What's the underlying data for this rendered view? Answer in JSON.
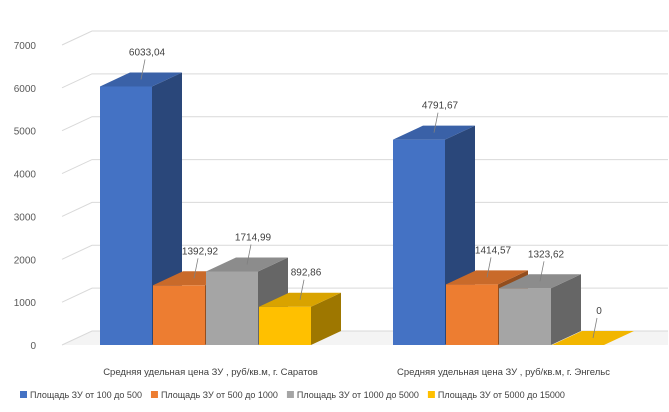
{
  "chart_data": {
    "type": "bar",
    "style": "3d-clustered-column",
    "categories": [
      "Средняя удельная цена ЗУ , руб/кв.м, г. Саратов",
      "Средняя удельная цена ЗУ , руб/кв.м, г. Энгельс"
    ],
    "series": [
      {
        "name": "Площадь ЗУ от 100 до 500",
        "color": "#4472C4",
        "values": [
          6033.04,
          4791.67
        ],
        "labels": [
          "6033,04",
          "4791,67"
        ]
      },
      {
        "name": "Площадь ЗУ от 500 до 1000",
        "color": "#ED7D31",
        "values": [
          1392.92,
          1414.57
        ],
        "labels": [
          "1392,92",
          "1414,57"
        ]
      },
      {
        "name": "Площадь ЗУ от 1000 до 5000",
        "color": "#A5A5A5",
        "values": [
          1714.99,
          1323.62
        ],
        "labels": [
          "1714,99",
          "1323,62"
        ]
      },
      {
        "name": "Площадь ЗУ от 5000 до 15000",
        "color": "#FFC000",
        "values": [
          892.86,
          0
        ],
        "labels": [
          "892,86",
          "0"
        ]
      }
    ],
    "y_ticks": [
      "0",
      "1000",
      "2000",
      "3000",
      "4000",
      "5000",
      "6000",
      "7000"
    ],
    "ylim": [
      0,
      7000
    ],
    "grid": true,
    "legend_position": "bottom"
  }
}
